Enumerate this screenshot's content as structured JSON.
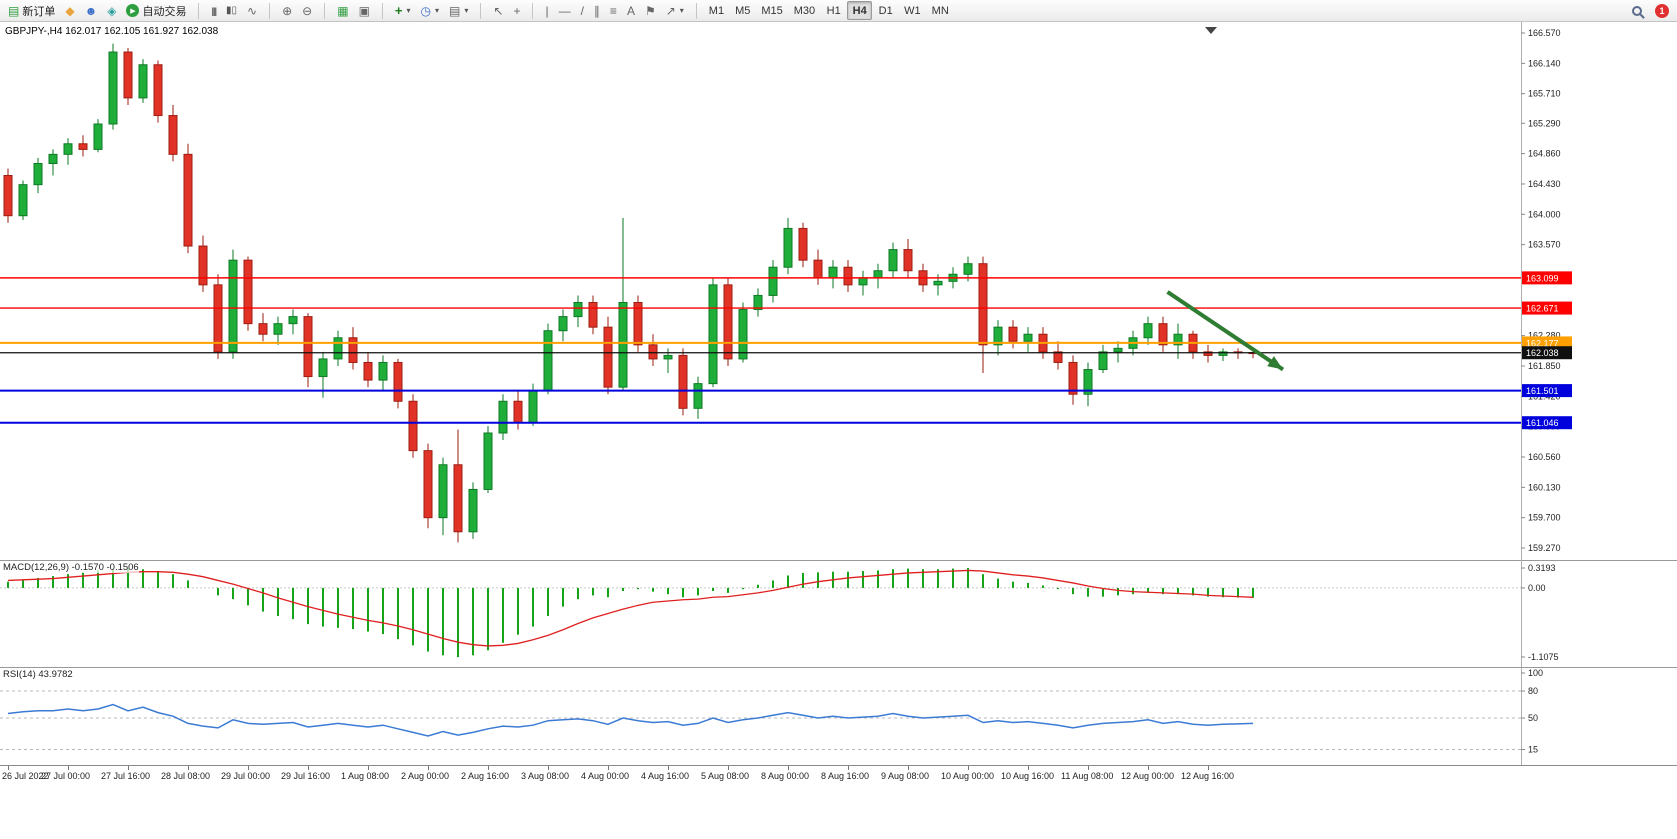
{
  "toolbar": {
    "new_order_label": "新订单",
    "autotrade_label": "自动交易",
    "timeframes": [
      "M1",
      "M5",
      "M15",
      "M30",
      "H1",
      "H4",
      "D1",
      "W1",
      "MN"
    ],
    "active_timeframe": "H4",
    "notification_badge": "1",
    "icons": {
      "new_order": "▤",
      "charts": "◆",
      "market_watch": "☻",
      "navigator": "◈",
      "autotrade_play": "▶",
      "bars": "|||",
      "candles": "▮▯",
      "line_chart": "∿",
      "zoom_in": "⊕",
      "zoom_out": "⊖",
      "tile_windows": "▦",
      "cascade_windows": "▣",
      "indicators_plus": "+",
      "clock": "◷",
      "templates": "▤",
      "cursor": "↖",
      "crosshair": "+",
      "vline": "|",
      "hline": "—",
      "trendline": "/",
      "channel": "∥",
      "fibonacci": "≡",
      "text_tool": "A",
      "label_tool": "⚑",
      "arrow_tool": "↗",
      "dropdown": "▾"
    }
  },
  "chart": {
    "header": "GBPJPY-,H4 162.017 162.105 161.927 162.038",
    "y_ticks": [
      "166.570",
      "166.140",
      "165.710",
      "165.290",
      "164.860",
      "164.430",
      "164.000",
      "163.570",
      "162.280",
      "161.850",
      "161.420",
      "160.990",
      "160.560",
      "160.130",
      "159.700",
      "159.270"
    ],
    "levels": [
      {
        "price": 163.099,
        "label": "163.099",
        "color": "#ff0000",
        "width": 1.4
      },
      {
        "price": 162.671,
        "label": "162.671",
        "color": "#ff0000",
        "width": 1.4
      },
      {
        "price": 162.177,
        "label": "162.177",
        "color": "#ffa000",
        "width": 2
      },
      {
        "price": 162.038,
        "label": "162.038",
        "color": "#101010",
        "width": 1.2
      },
      {
        "price": 161.501,
        "label": "161.501",
        "color": "#0000dd",
        "width": 2
      },
      {
        "price": 161.046,
        "label": "161.046",
        "color": "#0000dd",
        "width": 2
      }
    ],
    "colors": {
      "bull": "#1fae3a",
      "bear": "#e03226",
      "bull_stroke": "#0e7a24",
      "bear_stroke": "#9e1d12"
    },
    "arrow_annotation": {
      "start": {
        "bar": 77.3,
        "price": 162.9
      },
      "end": {
        "bar": 85.0,
        "price": 161.8
      },
      "color": "#2f7d32"
    },
    "candles": [
      [
        164.55,
        164.65,
        163.88,
        163.98
      ],
      [
        163.98,
        164.48,
        163.92,
        164.42
      ],
      [
        164.42,
        164.8,
        164.3,
        164.72
      ],
      [
        164.72,
        164.92,
        164.55,
        164.85
      ],
      [
        164.85,
        165.08,
        164.7,
        165.0
      ],
      [
        165.0,
        165.12,
        164.82,
        164.92
      ],
      [
        164.92,
        165.35,
        164.88,
        165.28
      ],
      [
        165.28,
        166.42,
        165.2,
        166.3
      ],
      [
        166.3,
        166.36,
        165.55,
        165.65
      ],
      [
        165.65,
        166.2,
        165.58,
        166.12
      ],
      [
        166.12,
        166.18,
        165.3,
        165.4
      ],
      [
        165.4,
        165.55,
        164.75,
        164.85
      ],
      [
        164.85,
        165.0,
        163.45,
        163.55
      ],
      [
        163.55,
        163.7,
        162.9,
        163.0
      ],
      [
        163.0,
        163.15,
        161.95,
        162.05
      ],
      [
        162.05,
        163.5,
        161.95,
        163.35
      ],
      [
        163.35,
        163.4,
        162.35,
        162.45
      ],
      [
        162.45,
        162.6,
        162.2,
        162.3
      ],
      [
        162.3,
        162.55,
        162.15,
        162.45
      ],
      [
        162.45,
        162.65,
        162.3,
        162.55
      ],
      [
        162.55,
        162.6,
        161.55,
        161.7
      ],
      [
        161.7,
        162.05,
        161.4,
        161.95
      ],
      [
        161.95,
        162.35,
        161.85,
        162.25
      ],
      [
        162.25,
        162.4,
        161.8,
        161.9
      ],
      [
        161.9,
        162.05,
        161.55,
        161.65
      ],
      [
        161.65,
        162.0,
        161.5,
        161.9
      ],
      [
        161.9,
        161.95,
        161.25,
        161.35
      ],
      [
        161.35,
        161.45,
        160.55,
        160.65
      ],
      [
        160.65,
        160.75,
        159.55,
        159.7
      ],
      [
        159.7,
        160.55,
        159.45,
        160.45
      ],
      [
        160.45,
        160.95,
        159.35,
        159.5
      ],
      [
        159.5,
        160.2,
        159.4,
        160.1
      ],
      [
        160.1,
        161.0,
        160.05,
        160.9
      ],
      [
        160.9,
        161.45,
        160.8,
        161.35
      ],
      [
        161.35,
        161.5,
        160.95,
        161.05
      ],
      [
        161.05,
        161.6,
        161.0,
        161.5
      ],
      [
        161.5,
        162.45,
        161.45,
        162.35
      ],
      [
        162.35,
        162.65,
        162.2,
        162.55
      ],
      [
        162.55,
        162.85,
        162.4,
        162.75
      ],
      [
        162.75,
        162.85,
        162.3,
        162.4
      ],
      [
        162.4,
        162.55,
        161.45,
        161.55
      ],
      [
        161.55,
        163.95,
        161.5,
        162.75
      ],
      [
        162.75,
        162.85,
        162.05,
        162.15
      ],
      [
        162.15,
        162.3,
        161.85,
        161.95
      ],
      [
        161.95,
        162.1,
        161.75,
        162.0
      ],
      [
        162.0,
        162.1,
        161.15,
        161.25
      ],
      [
        161.25,
        161.7,
        161.1,
        161.6
      ],
      [
        161.6,
        163.1,
        161.55,
        163.0
      ],
      [
        163.0,
        163.1,
        161.85,
        161.95
      ],
      [
        161.95,
        162.75,
        161.9,
        162.65
      ],
      [
        162.65,
        162.95,
        162.55,
        162.85
      ],
      [
        162.85,
        163.35,
        162.75,
        163.25
      ],
      [
        163.25,
        163.95,
        163.15,
        163.8
      ],
      [
        163.8,
        163.88,
        163.25,
        163.35
      ],
      [
        163.35,
        163.5,
        163.0,
        163.1
      ],
      [
        163.1,
        163.35,
        162.95,
        163.25
      ],
      [
        163.25,
        163.35,
        162.9,
        163.0
      ],
      [
        163.0,
        163.2,
        162.85,
        163.1
      ],
      [
        163.1,
        163.3,
        162.95,
        163.2
      ],
      [
        163.2,
        163.6,
        163.1,
        163.5
      ],
      [
        163.5,
        163.65,
        163.1,
        163.2
      ],
      [
        163.2,
        163.3,
        162.9,
        163.0
      ],
      [
        163.0,
        163.15,
        162.85,
        163.05
      ],
      [
        163.05,
        163.25,
        162.95,
        163.15
      ],
      [
        163.15,
        163.4,
        163.05,
        163.3
      ],
      [
        163.3,
        163.4,
        161.75,
        162.15
      ],
      [
        162.15,
        162.5,
        162.0,
        162.4
      ],
      [
        162.4,
        162.5,
        162.1,
        162.2
      ],
      [
        162.2,
        162.4,
        162.05,
        162.3
      ],
      [
        162.3,
        162.4,
        161.95,
        162.05
      ],
      [
        162.05,
        162.2,
        161.8,
        161.9
      ],
      [
        161.9,
        162.0,
        161.3,
        161.45
      ],
      [
        161.45,
        161.9,
        161.28,
        161.8
      ],
      [
        161.8,
        162.15,
        161.75,
        162.05
      ],
      [
        162.05,
        162.2,
        161.9,
        162.1
      ],
      [
        162.1,
        162.35,
        162.0,
        162.25
      ],
      [
        162.25,
        162.55,
        162.15,
        162.45
      ],
      [
        162.45,
        162.55,
        162.05,
        162.15
      ],
      [
        162.15,
        162.45,
        161.95,
        162.3
      ],
      [
        162.3,
        162.35,
        161.95,
        162.05
      ],
      [
        162.05,
        162.15,
        161.9,
        162.0
      ],
      [
        162.0,
        162.1,
        161.92,
        162.05
      ],
      [
        162.05,
        162.1,
        161.95,
        162.04
      ],
      [
        162.04,
        162.1,
        161.96,
        162.038
      ]
    ]
  },
  "macd": {
    "label": "MACD(12,26,9) -0.1570 -0.1506",
    "axis": [
      {
        "label": "0.3193",
        "value": 0.3193
      },
      {
        "label": "0.00",
        "value": 0
      },
      {
        "label": "-1.1075",
        "value": -1.1075
      }
    ],
    "colors": {
      "histogram": "#17a317",
      "signal": "#e02020"
    },
    "values": [
      0.1,
      0.13,
      0.16,
      0.19,
      0.22,
      0.25,
      0.28,
      0.31,
      0.32,
      0.3,
      0.27,
      0.22,
      0.12,
      0.0,
      -0.12,
      -0.18,
      -0.28,
      -0.38,
      -0.45,
      -0.5,
      -0.58,
      -0.62,
      -0.64,
      -0.66,
      -0.7,
      -0.74,
      -0.82,
      -0.92,
      -1.02,
      -1.08,
      -1.11,
      -1.08,
      -1.0,
      -0.88,
      -0.75,
      -0.62,
      -0.45,
      -0.3,
      -0.18,
      -0.12,
      -0.15,
      -0.05,
      -0.02,
      -0.06,
      -0.1,
      -0.15,
      -0.12,
      -0.05,
      -0.08,
      -0.02,
      0.05,
      0.12,
      0.2,
      0.24,
      0.25,
      0.26,
      0.26,
      0.27,
      0.28,
      0.3,
      0.31,
      0.3,
      0.3,
      0.31,
      0.32,
      0.22,
      0.15,
      0.1,
      0.08,
      0.04,
      -0.02,
      -0.1,
      -0.14,
      -0.14,
      -0.12,
      -0.1,
      -0.08,
      -0.1,
      -0.1,
      -0.12,
      -0.14,
      -0.15,
      -0.155,
      -0.157
    ],
    "signal": [
      0.12,
      0.13,
      0.14,
      0.15,
      0.17,
      0.19,
      0.21,
      0.23,
      0.25,
      0.26,
      0.26,
      0.25,
      0.22,
      0.18,
      0.12,
      0.06,
      -0.01,
      -0.08,
      -0.16,
      -0.23,
      -0.3,
      -0.36,
      -0.42,
      -0.47,
      -0.52,
      -0.56,
      -0.61,
      -0.67,
      -0.74,
      -0.81,
      -0.87,
      -0.91,
      -0.93,
      -0.92,
      -0.89,
      -0.83,
      -0.76,
      -0.67,
      -0.57,
      -0.48,
      -0.41,
      -0.34,
      -0.28,
      -0.23,
      -0.21,
      -0.19,
      -0.18,
      -0.15,
      -0.14,
      -0.11,
      -0.08,
      -0.04,
      0.01,
      0.06,
      0.1,
      0.13,
      0.16,
      0.18,
      0.2,
      0.22,
      0.24,
      0.25,
      0.26,
      0.27,
      0.28,
      0.27,
      0.24,
      0.21,
      0.19,
      0.16,
      0.12,
      0.08,
      0.03,
      -0.01,
      -0.04,
      -0.06,
      -0.07,
      -0.08,
      -0.09,
      -0.1,
      -0.12,
      -0.13,
      -0.14,
      -0.1506
    ]
  },
  "rsi": {
    "label": "RSI(14) 43.9782",
    "color": "#3b7bd4",
    "levels": [
      80,
      50,
      15
    ],
    "axis": [
      {
        "label": "100",
        "value": 100
      },
      {
        "label": "80",
        "value": 80
      },
      {
        "label": "50",
        "value": 50
      },
      {
        "label": "15",
        "value": 15
      }
    ],
    "values": [
      55,
      57,
      58,
      58,
      60,
      58,
      60,
      65,
      58,
      62,
      56,
      52,
      44,
      41,
      39,
      48,
      44,
      43,
      44,
      45,
      40,
      42,
      44,
      42,
      40,
      42,
      38,
      34,
      30,
      35,
      31,
      34,
      38,
      41,
      40,
      42,
      47,
      48,
      49,
      47,
      43,
      50,
      47,
      45,
      46,
      42,
      44,
      50,
      45,
      48,
      50,
      53,
      56,
      53,
      50,
      52,
      50,
      51,
      52,
      55,
      52,
      50,
      51,
      52,
      53,
      45,
      47,
      45,
      46,
      44,
      42,
      39,
      42,
      44,
      45,
      46,
      48,
      44,
      46,
      43,
      42,
      43,
      43.5,
      43.98
    ]
  },
  "time_axis": {
    "labels": [
      "26 Jul 2022",
      "27 Jul 00:00",
      "27 Jul 16:00",
      "28 Jul 08:00",
      "29 Jul 00:00",
      "29 Jul 16:00",
      "1 Aug 08:00",
      "2 Aug 00:00",
      "2 Aug 16:00",
      "3 Aug 08:00",
      "4 Aug 00:00",
      "4 Aug 16:00",
      "5 Aug 08:00",
      "8 Aug 00:00",
      "8 Aug 16:00",
      "9 Aug 08:00",
      "10 Aug 00:00",
      "10 Aug 16:00",
      "11 Aug 08:00",
      "12 Aug 00:00",
      "12 Aug 16:00"
    ]
  }
}
